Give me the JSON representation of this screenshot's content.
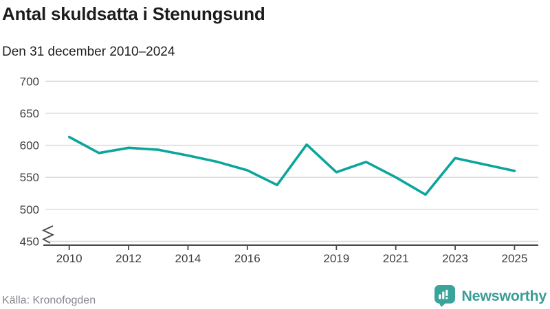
{
  "header": {
    "title": "Antal skuldsatta i Stenungsund",
    "subtitle": "Den 31 december 2010–2024"
  },
  "footer": {
    "source": "Källa: Kronofogden",
    "brand": "Newsworthy"
  },
  "colors": {
    "line": "#0BA59B",
    "logo": "#3AA39A",
    "brand_text": "#3A9D96",
    "axis": "#474747",
    "grid": "#D9D9D9",
    "tick_text": "#3D3D3D",
    "muted_text": "#87878F"
  },
  "chart_data": {
    "type": "line",
    "title": "Antal skuldsatta i Stenungsund",
    "subtitle": "Den 31 december 2010–2024",
    "series": [
      {
        "name": "Antal skuldsatta",
        "x": [
          2010,
          2011,
          2012,
          2013,
          2014,
          2015,
          2016,
          2017,
          2018,
          2019,
          2020,
          2021,
          2022,
          2023,
          2024
        ],
        "values": [
          613,
          588,
          596,
          593,
          584,
          574,
          561,
          538,
          601,
          558,
          574,
          550,
          523,
          580,
          560
        ]
      }
    ],
    "xlabel": "",
    "ylabel": "",
    "ylim": [
      450,
      700
    ],
    "yticks": [
      450,
      500,
      550,
      600,
      650,
      700
    ],
    "x_tick_labels": [
      "2010",
      "2012",
      "2014",
      "2016",
      "2019",
      "2021",
      "2023",
      "2025"
    ],
    "x_tick_years": [
      2010,
      2012,
      2014,
      2016,
      2019,
      2021,
      2023,
      2025
    ],
    "x_axis_span_years": [
      2010,
      2025
    ],
    "y_axis_break": true,
    "grid": "horizontal",
    "legend": "none"
  }
}
